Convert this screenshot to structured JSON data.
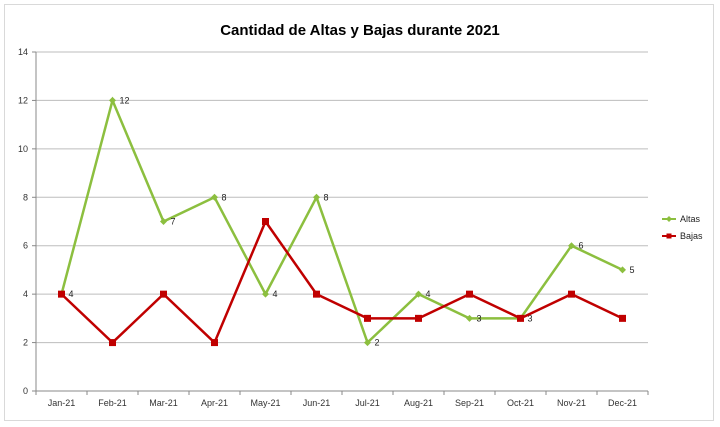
{
  "chart_data": {
    "type": "line",
    "title": "Cantidad de Altas y Bajas durante 2021",
    "xlabel": "",
    "ylabel": "",
    "categories": [
      "Jan-21",
      "Feb-21",
      "Mar-21",
      "Apr-21",
      "May-21",
      "Jun-21",
      "Jul-21",
      "Aug-21",
      "Sep-21",
      "Oct-21",
      "Nov-21",
      "Dec-21"
    ],
    "ylim": [
      0,
      14
    ],
    "yticks": [
      0,
      2,
      4,
      6,
      8,
      10,
      12,
      14
    ],
    "grid": true,
    "legend": "right",
    "series": [
      {
        "name": "Altas",
        "color": "#8cbf3f",
        "marker": "diamond",
        "values": [
          4,
          12,
          7,
          8,
          4,
          8,
          2,
          4,
          3,
          3,
          6,
          5
        ],
        "labels": [
          "4",
          "12",
          "7",
          "8",
          "4",
          "8",
          "2",
          "4",
          "3",
          "3",
          "6",
          "5"
        ]
      },
      {
        "name": "Bajas",
        "color": "#c00000",
        "marker": "square",
        "values": [
          4,
          2,
          4,
          2,
          7,
          4,
          3,
          3,
          4,
          3,
          4,
          3
        ]
      }
    ]
  }
}
